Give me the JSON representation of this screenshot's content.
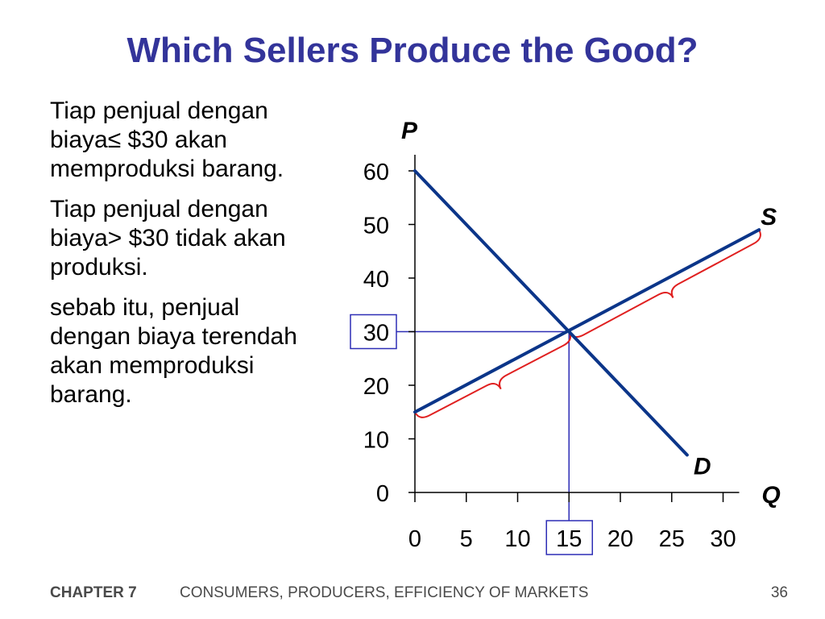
{
  "slide": {
    "title": "Which Sellers Produce the Good?",
    "paragraphs": [
      "Tiap penjual dengan biaya≤ $30 akan memproduksi barang.",
      "Tiap penjual dengan biaya> $30 tidak akan produksi.",
      "sebab itu, penjual dengan biaya terendah akan memproduksi barang."
    ],
    "footer": {
      "chapter": "CHAPTER 7",
      "book": "CONSUMERS, PRODUCERS, EFFICIENCY OF MARKETS",
      "page": "36"
    }
  },
  "colors": {
    "title": "#33349a",
    "curve": "#0b3589",
    "guide": "#2d2db5",
    "brace": "#e02020",
    "axis": "#000000"
  },
  "chart_data": {
    "type": "line",
    "xlabel": "Q",
    "ylabel": "P",
    "xlim": [
      0,
      30
    ],
    "ylim": [
      0,
      60
    ],
    "x_ticks": [
      0,
      5,
      10,
      15,
      20,
      25,
      30
    ],
    "y_ticks": [
      0,
      10,
      20,
      30,
      40,
      50,
      60
    ],
    "series": [
      {
        "name": "D",
        "points": [
          [
            0,
            60
          ],
          [
            26.5,
            7
          ]
        ]
      },
      {
        "name": "S",
        "points": [
          [
            0,
            15
          ],
          [
            33.5,
            49
          ]
        ]
      }
    ],
    "equilibrium": {
      "x": 15,
      "y": 30
    },
    "highlighted_ticks": {
      "x": 15,
      "y": 30
    },
    "braces": [
      {
        "from": [
          0,
          15
        ],
        "to": [
          15,
          30
        ]
      },
      {
        "from": [
          15,
          30
        ],
        "to": [
          33.5,
          49
        ]
      }
    ]
  }
}
